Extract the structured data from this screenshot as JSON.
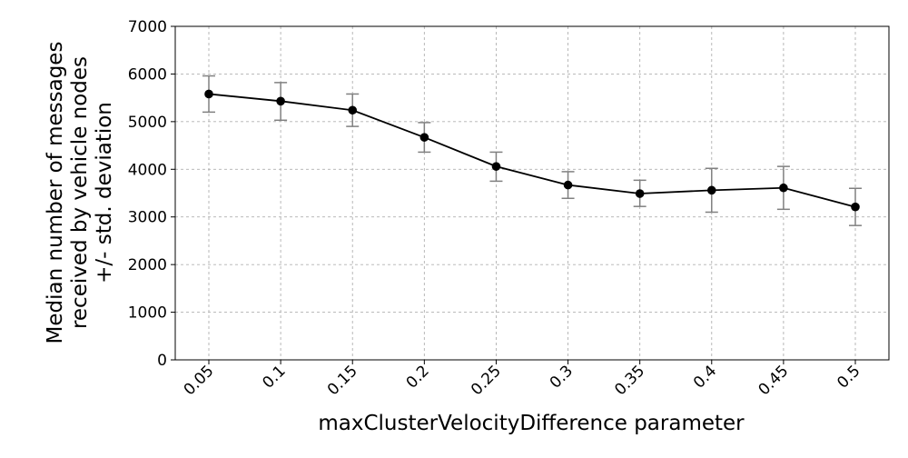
{
  "chart_data": {
    "type": "line",
    "title": "",
    "xlabel": "maxClusterVelocityDifference parameter",
    "ylabel_lines": [
      "Median number of messages",
      "received by vehicle nodes",
      "+/- std. deviation"
    ],
    "categories": [
      "0.05",
      "0.1",
      "0.15",
      "0.2",
      "0.25",
      "0.3",
      "0.35",
      "0.4",
      "0.45",
      "0.5"
    ],
    "series": [
      {
        "values": [
          5580,
          5430,
          5240,
          4670,
          4060,
          3670,
          3490,
          3560,
          3610,
          3210
        ],
        "error_low": [
          5200,
          5030,
          4900,
          4360,
          3750,
          3390,
          3220,
          3100,
          3160,
          2820
        ],
        "error_high": [
          5960,
          5820,
          5580,
          4980,
          4360,
          3950,
          3770,
          4020,
          4060,
          3600
        ],
        "color": "#000000",
        "error_color": "#808080"
      }
    ],
    "ylim": [
      0,
      7000
    ],
    "yticks": [
      0,
      1000,
      2000,
      3000,
      4000,
      5000,
      6000,
      7000
    ],
    "grid": true,
    "legend": false
  }
}
